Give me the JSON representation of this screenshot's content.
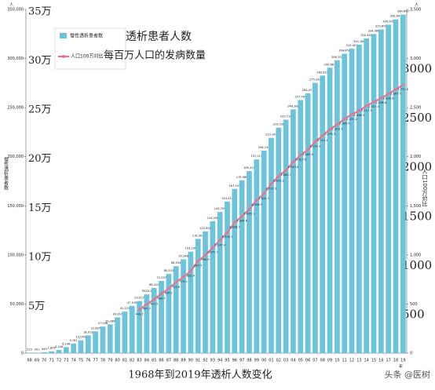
{
  "chart_data": {
    "type": "bar",
    "legend": [
      "透析患者人数",
      "每百万人口的发病数量"
    ],
    "caption": "1968年到2019年透析人数变化",
    "watermark": "头条 @医树",
    "ylabel": "慢性透析患者数",
    "y2label": "人口100万対比",
    "yunit": "人",
    "y2unit": "人",
    "xunit": "年",
    "categories": [
      "68",
      "69",
      "70",
      "71",
      "72",
      "73",
      "74",
      "75",
      "76",
      "77",
      "78",
      "79",
      "80",
      "81",
      "82",
      "83",
      "84",
      "85",
      "86",
      "87",
      "88",
      "89",
      "90",
      "91",
      "92",
      "93",
      "94",
      "95",
      "96",
      "97",
      "98",
      "99",
      "00",
      "01",
      "02",
      "03",
      "04",
      "05",
      "06",
      "07",
      "08",
      "09",
      "10",
      "11",
      "12",
      "13",
      "14",
      "15",
      "16",
      "17",
      "18",
      "19"
    ],
    "series": [
      {
        "name": "慢性透析患者数",
        "color": "#6cc4dc",
        "values": [
          215,
          301,
          949,
          1826,
          3146,
          6148,
          9781,
          13059,
          18013,
          22087,
          27046,
          29286,
          36397,
          42223,
          47978,
          53017,
          59811,
          66310,
          73537,
          80553,
          88534,
          95546,
          103296,
          116303,
          123926,
          134298,
          143709,
          154413,
          167192,
          175988,
          185322,
          197213,
          206134,
          219183,
          229538,
          237710,
          248166,
          257765,
          264473,
          275242,
          282622,
          290661,
          298252,
          304856,
          310007,
          314180,
          320448,
          324986,
          329609,
          334505,
          339841,
          344640
        ],
        "value_labels": [
          "215",
          "301",
          "949",
          "1,826",
          "3,146",
          "6,148",
          "9,781",
          "13,059",
          "18,013",
          "22,087",
          "27,046",
          "29,286",
          "36,397",
          "42,223",
          "47,978",
          "53,017",
          "59,811",
          "66,310",
          "73,537",
          "80,553",
          "88,534",
          "95,546",
          "103,296",
          "116,303",
          "123,926",
          "134,298",
          "143,709",
          "154,413",
          "167,192",
          "175,988",
          "185,322",
          "197,213",
          "206,134",
          "219,183",
          "229,538",
          "237,710",
          "248,166",
          "257,765",
          "264,473",
          "275,242",
          "282,622",
          "290,661",
          "298,252",
          "304,856",
          "310,007",
          "314,180",
          "320,448",
          "324,986",
          "329,609",
          "334,505",
          "339,841",
          "344,640"
        ]
      },
      {
        "name": "人口100万対比",
        "color": "#e8758e",
        "axis": "y2",
        "type": "line",
        "values": [
          null,
          null,
          null,
          null,
          null,
          null,
          null,
          null,
          null,
          null,
          null,
          null,
          null,
          null,
          null,
          443.7,
          497.7,
          547.9,
          604.5,
          659.1,
          720.9,
          775.5,
          835.4,
          937.5,
          996.9,
          1075.2,
          1147.4,
          1229.7,
          1328.7,
          1394.6,
          1465.1,
          1556.9,
          1624.1,
          1721.9,
          1801.2,
          1862.7,
          1943.6,
          2017.6,
          2069.9,
          2154.2,
          2213.2,
          2279.3,
          2329.1,
          2385.4,
          2431.2,
          2468.3,
          2517.3,
          2557.0,
          2596.6,
          2639.8,
          2687.7,
          2731.5
        ],
        "value_labels": [
          null,
          null,
          null,
          null,
          null,
          null,
          null,
          null,
          null,
          null,
          null,
          null,
          null,
          null,
          null,
          "443.7",
          "497.7",
          "547.9",
          "604.5",
          "659.1",
          "720.9",
          "775.5",
          "835.4",
          "937.5",
          "996.9",
          "1,075.2",
          "1,147.4",
          "1,229.7",
          "1,328.7",
          "1,394.6",
          "1,465.1",
          "1,556.9",
          "1,624.1",
          "1,721.9",
          "1,801.2",
          "1,862.7",
          "1,943.6",
          "2,017.6",
          "2,069.9",
          "2,154.2",
          "2,213.2",
          "2,279.3",
          "2,329.1",
          "2,385.4",
          "2,431.2",
          "2,468.3",
          "2,517.3",
          "2,557.0",
          "2,596.6",
          "2,639.8",
          "2,687.7",
          "2,731.5"
        ]
      }
    ],
    "ylim": [
      0,
      350000
    ],
    "yticks": [
      0,
      {
        "value": 50000,
        "label": "50,000"
      },
      {
        "value": 100000,
        "label": "100,000"
      },
      {
        "value": 150000,
        "label": "150,000"
      },
      {
        "value": 200000,
        "label": "200,000"
      },
      {
        "value": 250000,
        "label": "250,000"
      },
      {
        "value": 300000,
        "label": "300,000"
      },
      {
        "value": 350000,
        "label": "350,000"
      }
    ],
    "y2lim": [
      0,
      3500
    ],
    "y2ticks": [
      0,
      500,
      {
        "value": 1000,
        "label": "1,000"
      },
      {
        "value": 1500,
        "label": "1,500"
      },
      {
        "value": 2000,
        "label": "2,000"
      },
      {
        "value": 2500,
        "label": "2,500"
      },
      {
        "value": 3000,
        "label": "3,000"
      },
      {
        "value": 3500,
        "label": "3,500"
      }
    ],
    "cn_yticks": [
      {
        "value": 50000,
        "label": "5万"
      },
      {
        "value": 100000,
        "label": "10万"
      },
      {
        "value": 150000,
        "label": "15万"
      },
      {
        "value": 200000,
        "label": "20万"
      },
      {
        "value": 250000,
        "label": "25万"
      },
      {
        "value": 300000,
        "label": "30万"
      },
      {
        "value": 350000,
        "label": "35万"
      }
    ],
    "big_y2ticks": [
      500,
      1000,
      1500,
      2000,
      2500,
      3000
    ]
  }
}
